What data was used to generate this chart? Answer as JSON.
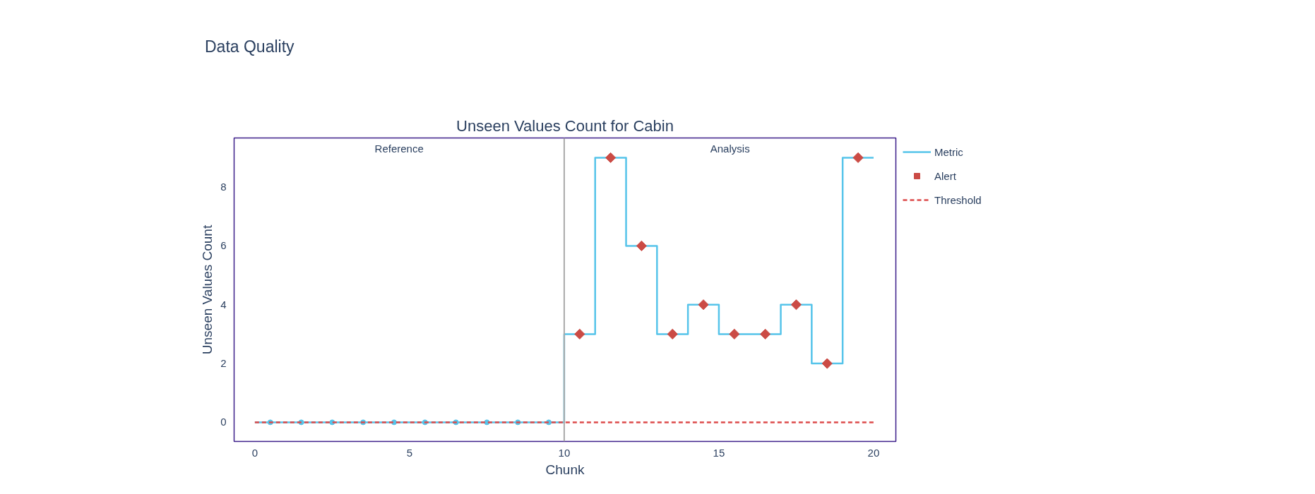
{
  "chart_data": {
    "type": "step",
    "title": "Data Quality",
    "subtitle": "Unseen Values Count for Cabin",
    "xlabel": "Chunk",
    "ylabel": "Unseen Values Count",
    "xlim": [
      -0.67,
      20.72
    ],
    "ylim": [
      -0.65,
      9.67
    ],
    "xticks": [
      0,
      5,
      10,
      15,
      20
    ],
    "yticks": [
      0,
      2,
      4,
      6,
      8
    ],
    "grid": false,
    "legend": "right",
    "series": [
      {
        "name": "Metric",
        "color": "#56c4ea",
        "marker": "none",
        "line_style": "solid",
        "x": [
          0,
          1,
          2,
          3,
          4,
          5,
          6,
          7,
          8,
          9,
          10,
          11,
          12,
          13,
          14,
          15,
          16,
          17,
          18,
          19,
          20
        ],
        "values": [
          0,
          0,
          0,
          0,
          0,
          0,
          0,
          0,
          0,
          0,
          3,
          9,
          6,
          3,
          4,
          3,
          3,
          4,
          2,
          9,
          9
        ]
      },
      {
        "type": "scatter",
        "color": "#56c4ea",
        "marker": "circle",
        "x": [
          0.5,
          1.5,
          2.5,
          3.5,
          4.5,
          5.5,
          6.5,
          7.5,
          8.5,
          9.5
        ],
        "values": [
          0,
          0,
          0,
          0,
          0,
          0,
          0,
          0,
          0,
          0
        ]
      },
      {
        "name": "Alert",
        "type": "scatter",
        "color": "#cb4b45",
        "marker": "diamond",
        "x": [
          10.5,
          11.5,
          12.5,
          13.5,
          14.5,
          15.5,
          16.5,
          17.5,
          18.5,
          19.5
        ],
        "values": [
          3,
          9,
          6,
          3,
          4,
          3,
          3,
          4,
          2,
          9
        ]
      },
      {
        "name": "Threshold",
        "type": "line",
        "color": "#dd4b4b",
        "marker": "none",
        "line_style": "dashed",
        "x": [
          0,
          20
        ],
        "values": [
          0,
          0
        ]
      }
    ],
    "ref_lines": [
      {
        "axis": "x",
        "value": 10,
        "color": "#aaaaaa",
        "line_style": "solid"
      }
    ],
    "annotations": [
      "Reference",
      "Analysis"
    ]
  }
}
